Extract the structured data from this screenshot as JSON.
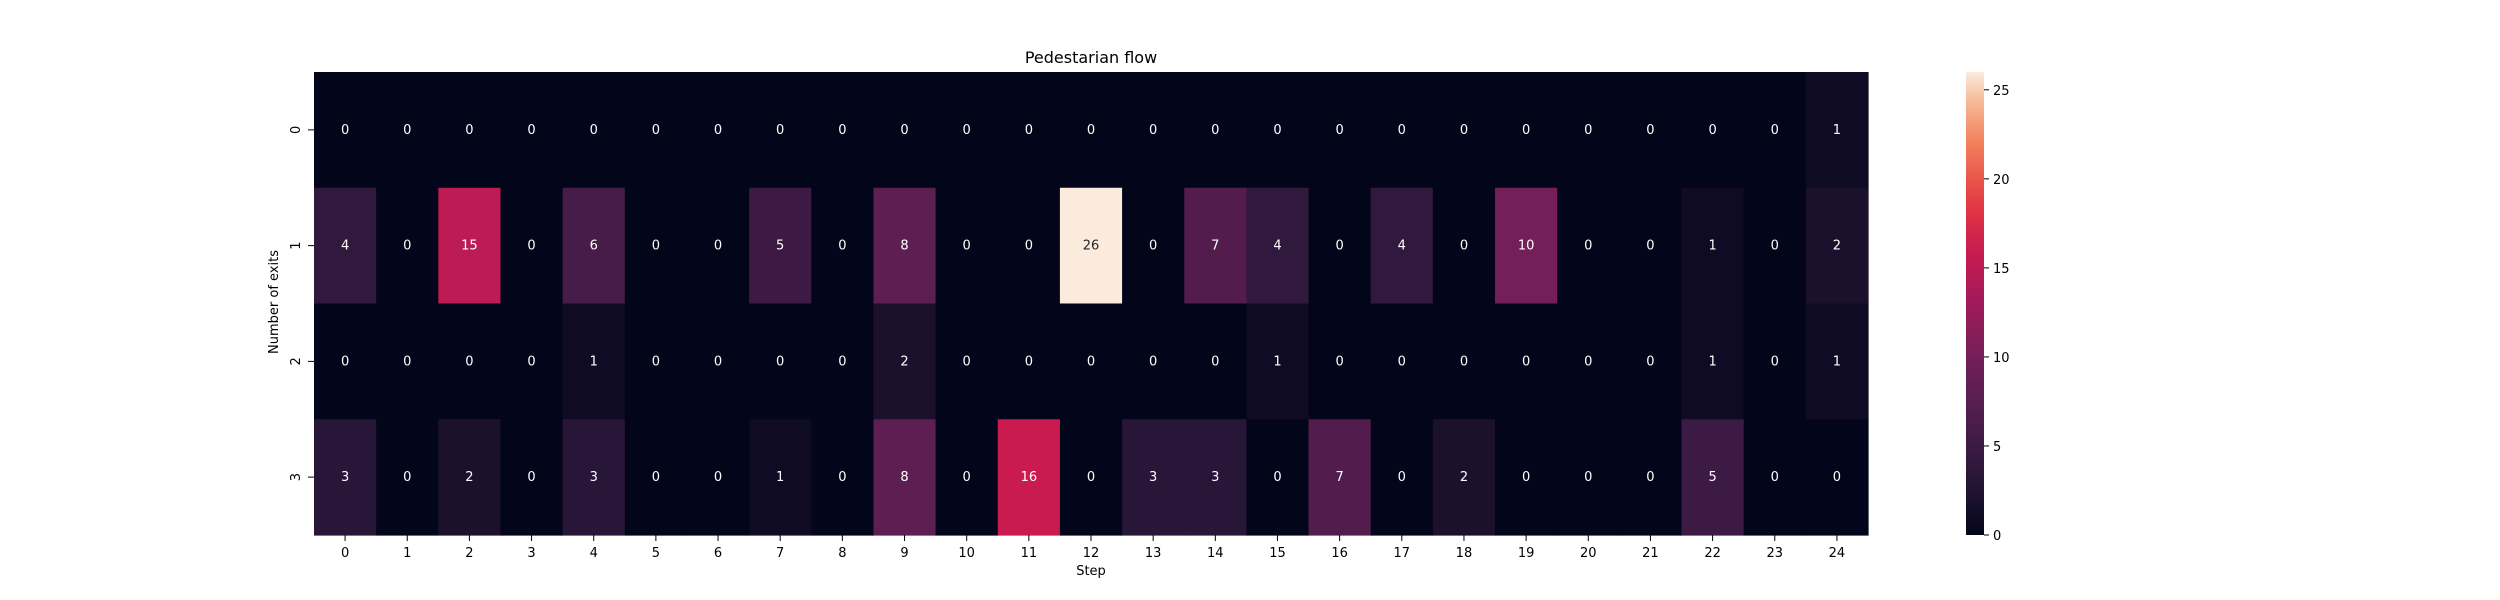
{
  "chart_data": {
    "type": "heatmap",
    "title": "Pedestarian flow",
    "xlabel": "Step",
    "ylabel": "Number of exits",
    "x_categories": [
      "0",
      "1",
      "2",
      "3",
      "4",
      "5",
      "6",
      "7",
      "8",
      "9",
      "10",
      "11",
      "12",
      "13",
      "14",
      "15",
      "16",
      "17",
      "18",
      "19",
      "20",
      "21",
      "22",
      "23",
      "24"
    ],
    "y_categories": [
      "0",
      "1",
      "2",
      "3"
    ],
    "values": [
      [
        0,
        0,
        0,
        0,
        0,
        0,
        0,
        0,
        0,
        0,
        0,
        0,
        0,
        0,
        0,
        0,
        0,
        0,
        0,
        0,
        0,
        0,
        0,
        0,
        1
      ],
      [
        4,
        0,
        15,
        0,
        6,
        0,
        0,
        5,
        0,
        8,
        0,
        0,
        26,
        0,
        7,
        4,
        0,
        4,
        0,
        10,
        0,
        0,
        1,
        0,
        2
      ],
      [
        0,
        0,
        0,
        0,
        1,
        0,
        0,
        0,
        0,
        2,
        0,
        0,
        0,
        0,
        0,
        1,
        0,
        0,
        0,
        0,
        0,
        0,
        1,
        0,
        1
      ],
      [
        3,
        0,
        2,
        0,
        3,
        0,
        0,
        1,
        0,
        8,
        0,
        16,
        0,
        3,
        3,
        0,
        7,
        0,
        2,
        0,
        0,
        0,
        5,
        0,
        0
      ]
    ],
    "colorbar": {
      "min": 0,
      "max": 26,
      "ticks": [
        "0",
        "5",
        "10",
        "15",
        "20",
        "25"
      ],
      "colormap": "rocket"
    },
    "grid": false,
    "legend": "none"
  }
}
